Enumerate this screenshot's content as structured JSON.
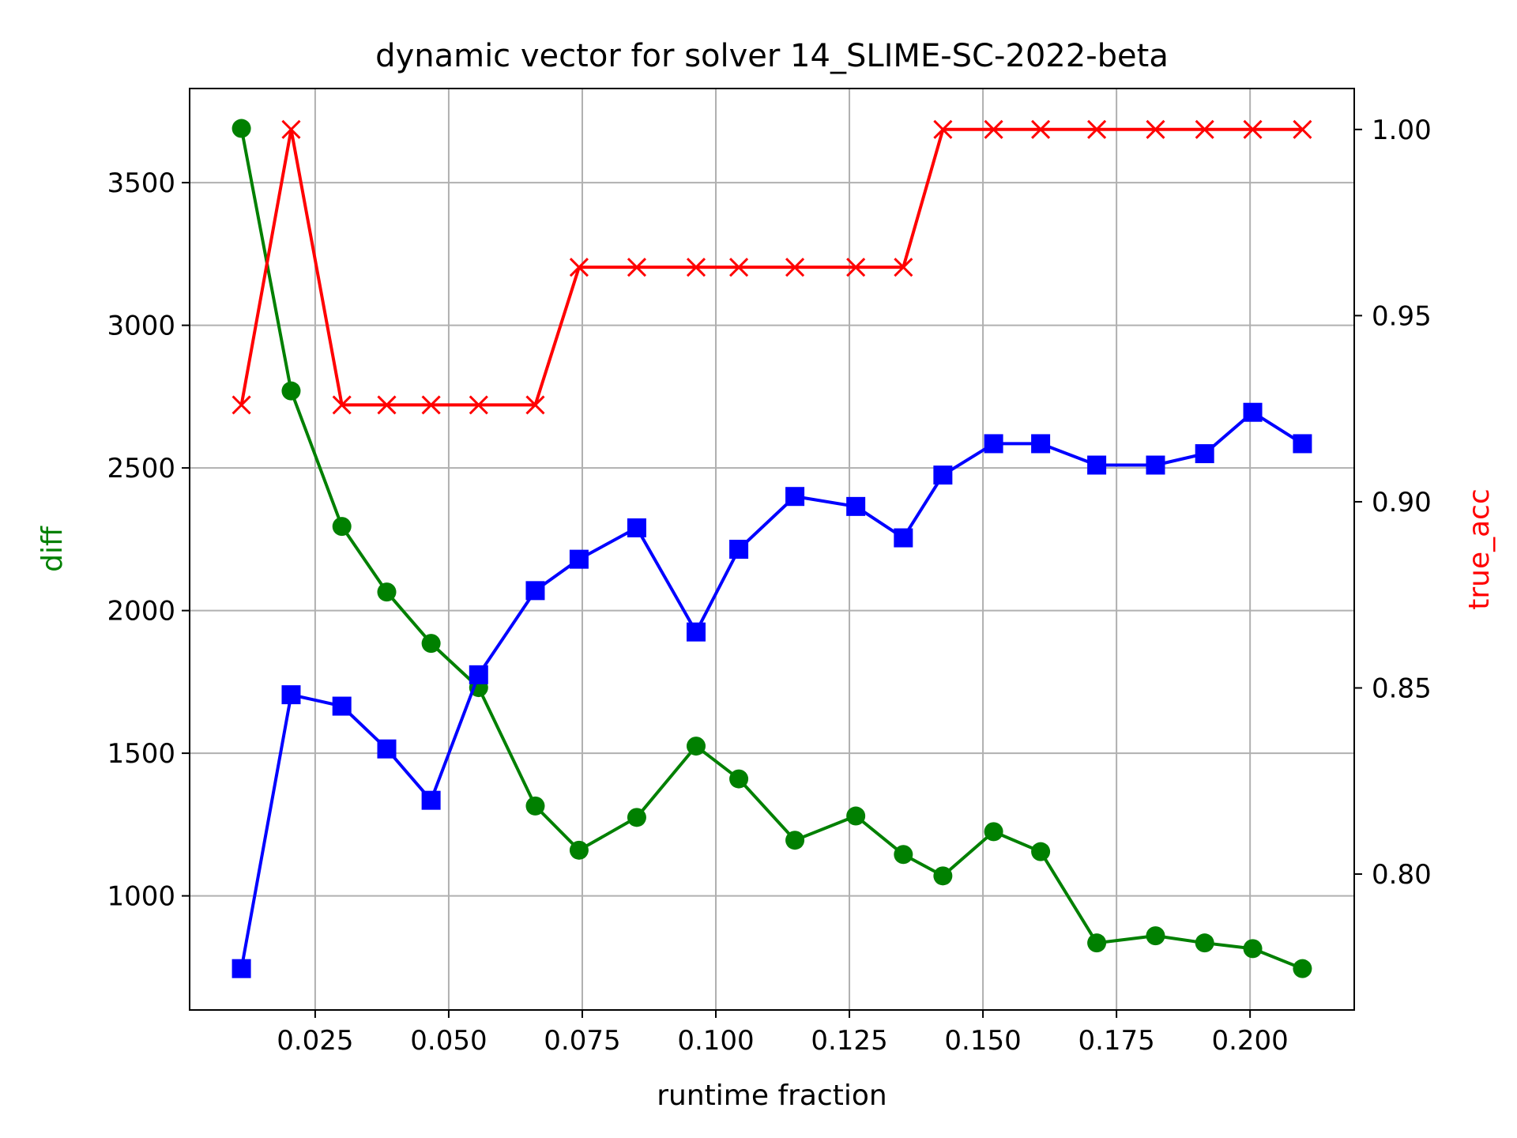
{
  "chart_data": {
    "type": "line",
    "title": "dynamic vector for solver 14_SLIME-SC-2022-beta",
    "xlabel": "runtime fraction",
    "ylabel": "diff",
    "y2label": "true_acc",
    "xlim": [
      0.0015,
      0.2195
    ],
    "ylim": [
      600,
      3830
    ],
    "y2lim": [
      0.7635,
      1.011
    ],
    "xticks": [
      "0.025",
      "0.050",
      "0.075",
      "0.100",
      "0.125",
      "0.150",
      "0.175",
      "0.200"
    ],
    "yticks": [
      "1000",
      "1500",
      "2000",
      "2500",
      "3000",
      "3500"
    ],
    "y2ticks": [
      "0.80",
      "0.85",
      "0.90",
      "0.95",
      "1.00"
    ],
    "grid": true,
    "x": [
      0.0112,
      0.0205,
      0.03,
      0.0384,
      0.0467,
      0.0556,
      0.0662,
      0.0744,
      0.0852,
      0.0963,
      0.1043,
      0.1148,
      0.1262,
      0.1351,
      0.1425,
      0.152,
      0.1608,
      0.1713,
      0.1823,
      0.1915,
      0.2005,
      0.2098
    ],
    "series": [
      {
        "color": "#008000",
        "axis": "left",
        "marker": "circle",
        "values": [
          3690,
          2770,
          2295,
          2065,
          1885,
          1730,
          1315,
          1160,
          1275,
          1525,
          1410,
          1195,
          1280,
          1145,
          1070,
          1225,
          1155,
          835,
          860,
          835,
          815,
          745
        ]
      },
      {
        "color": "#0000ff",
        "axis": "left",
        "marker": "square",
        "values": [
          745,
          1705,
          1665,
          1515,
          1335,
          1775,
          2070,
          2180,
          2290,
          1925,
          2215,
          2400,
          2365,
          2255,
          2475,
          2585,
          2585,
          2510,
          2510,
          2550,
          2695,
          2585
        ]
      },
      {
        "color": "#ff0000",
        "axis": "right",
        "marker": "x",
        "values": [
          0.926,
          1.0,
          0.926,
          0.926,
          0.926,
          0.926,
          0.926,
          0.963,
          0.963,
          0.963,
          0.963,
          0.963,
          0.963,
          0.963,
          1.0,
          1.0,
          1.0,
          1.0,
          1.0,
          1.0,
          1.0,
          1.0
        ]
      }
    ]
  }
}
